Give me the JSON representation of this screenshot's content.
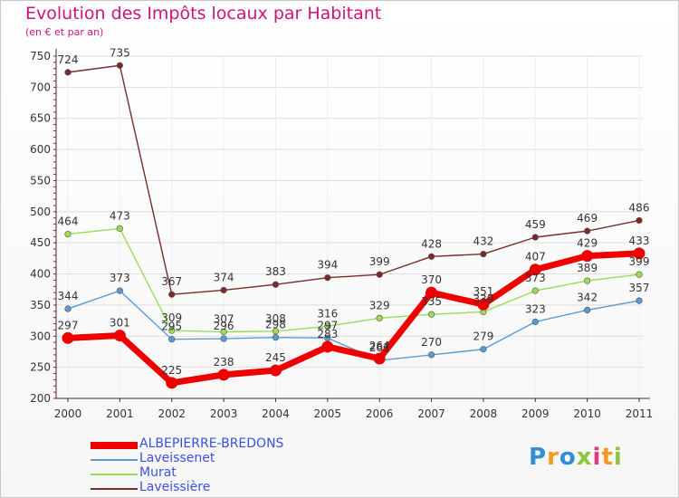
{
  "title": "Evolution des Impôts locaux par Habitant",
  "subtitle": "(en € et par an)",
  "logo": {
    "text": "Proxiti",
    "letters": [
      "P",
      "r",
      "o",
      "x",
      "i",
      "t",
      "i"
    ]
  },
  "chart_data": {
    "type": "line",
    "title": "Evolution des Impôts locaux par Habitant",
    "subtitle": "(en € et par an)",
    "categories": [
      "2000",
      "2001",
      "2002",
      "2003",
      "2004",
      "2005",
      "2006",
      "2007",
      "2008",
      "2009",
      "2010",
      "2011"
    ],
    "ylim": [
      200,
      750
    ],
    "yticks": [
      "200",
      "250",
      "300",
      "350",
      "400",
      "450",
      "500",
      "550",
      "600",
      "650",
      "700",
      "750"
    ],
    "legend_position": "bottom-left",
    "series": [
      {
        "name": "ALBEPIERRE-BREDONS",
        "color": "#ee0000",
        "values": [
          297,
          301,
          225,
          238,
          245,
          283,
          264,
          370,
          351,
          407,
          429,
          433
        ],
        "labels": [
          "297",
          "301",
          "225",
          "238",
          "245",
          "283",
          "264",
          "370",
          "351",
          "407",
          "429",
          "433"
        ]
      },
      {
        "name": "Laveissenet",
        "color": "#5a9bd5",
        "values": [
          344,
          373,
          295,
          296,
          298,
          297,
          261,
          270,
          279,
          323,
          342,
          357
        ],
        "labels": [
          "344",
          "373",
          "295",
          "296",
          "298",
          "297",
          "261",
          "270",
          "279",
          "323",
          "342",
          "357"
        ]
      },
      {
        "name": "Murat",
        "color": "#99dd55",
        "values": [
          464,
          473,
          309,
          307,
          308,
          316,
          329,
          335,
          339,
          373,
          389,
          399
        ],
        "labels": [
          "464",
          "473",
          "309",
          "307",
          "308",
          "316",
          "329",
          "335",
          "339",
          "373",
          "389",
          "399"
        ]
      },
      {
        "name": "Laveissière",
        "color": "#7a2a2a",
        "values": [
          724,
          735,
          367,
          374,
          383,
          394,
          399,
          428,
          432,
          459,
          469,
          486
        ],
        "labels": [
          "724",
          "735",
          "367",
          "374",
          "383",
          "394",
          "399",
          "428",
          "432",
          "459",
          "469",
          "486"
        ]
      }
    ]
  }
}
